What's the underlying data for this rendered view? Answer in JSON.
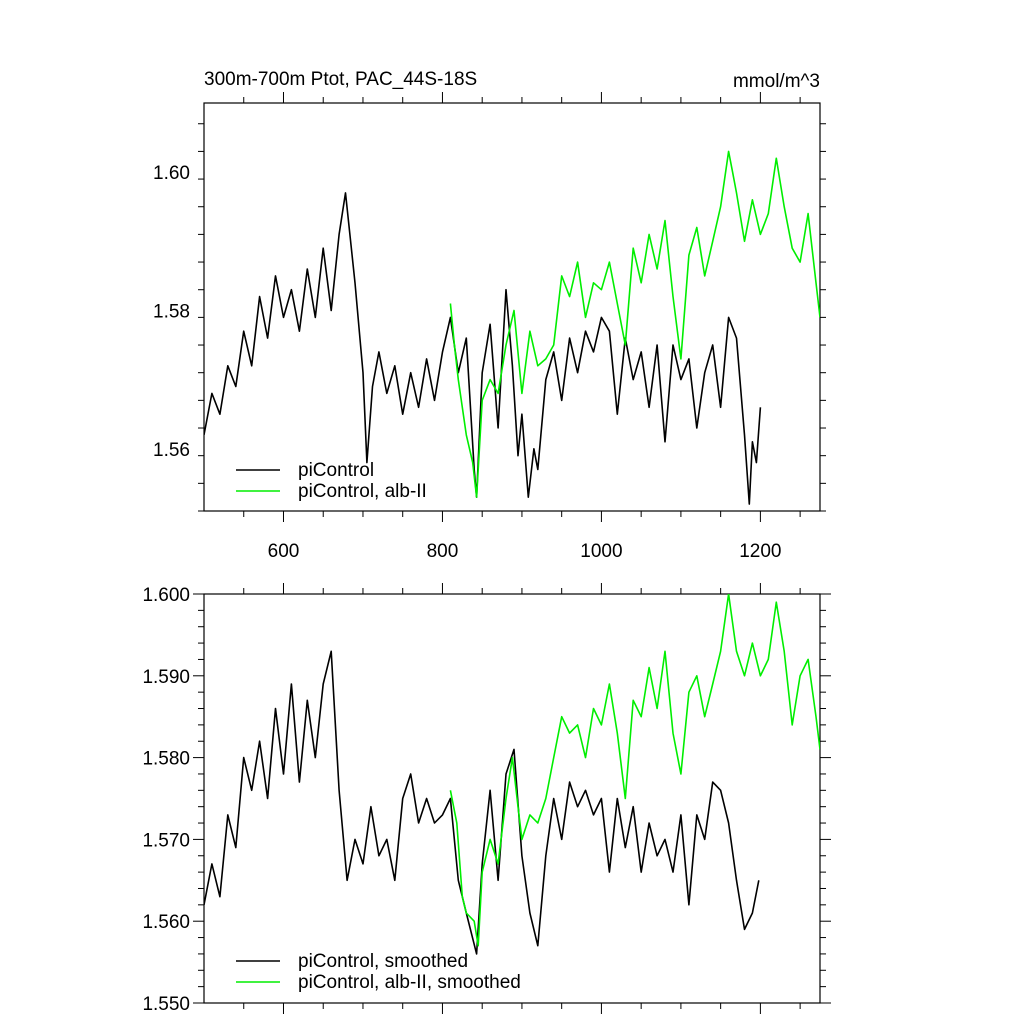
{
  "chart_data": [
    {
      "type": "line",
      "title": "300m-700m Ptot, PAC_44S-18S",
      "units": "mmol/m^3",
      "xlim": [
        500,
        1275
      ],
      "ylim": [
        1.551,
        1.61
      ],
      "x_ticks": [
        600,
        800,
        1000,
        1200
      ],
      "y_ticks": [
        "1.56",
        "1.58",
        "1.60"
      ],
      "y_tick_values": [
        1.56,
        1.58,
        1.6
      ],
      "grid": false,
      "legend_position": "bottom-left",
      "series": [
        {
          "name": "piControl",
          "color": "#000000",
          "x": [
            500,
            510,
            520,
            530,
            540,
            550,
            560,
            570,
            580,
            590,
            600,
            610,
            620,
            630,
            640,
            650,
            660,
            670,
            678,
            690,
            700,
            705,
            712,
            720,
            730,
            740,
            750,
            760,
            770,
            780,
            790,
            800,
            810,
            820,
            830,
            840,
            843,
            850,
            860,
            870,
            880,
            888,
            895,
            900,
            908,
            915,
            920,
            930,
            940,
            950,
            960,
            970,
            980,
            990,
            1000,
            1010,
            1020,
            1030,
            1040,
            1050,
            1060,
            1070,
            1080,
            1090,
            1100,
            1110,
            1120,
            1130,
            1140,
            1150,
            1160,
            1170,
            1180,
            1186,
            1190,
            1195,
            1200
          ],
          "values": [
            1.562,
            1.568,
            1.565,
            1.572,
            1.569,
            1.577,
            1.572,
            1.582,
            1.576,
            1.585,
            1.579,
            1.583,
            1.577,
            1.586,
            1.579,
            1.589,
            1.58,
            1.591,
            1.597,
            1.584,
            1.571,
            1.558,
            1.569,
            1.574,
            1.568,
            1.572,
            1.565,
            1.571,
            1.566,
            1.573,
            1.567,
            1.574,
            1.579,
            1.571,
            1.576,
            1.557,
            1.553,
            1.571,
            1.578,
            1.563,
            1.583,
            1.572,
            1.559,
            1.565,
            1.553,
            1.56,
            1.557,
            1.57,
            1.574,
            1.567,
            1.576,
            1.571,
            1.577,
            1.574,
            1.579,
            1.577,
            1.565,
            1.576,
            1.57,
            1.574,
            1.566,
            1.575,
            1.561,
            1.575,
            1.57,
            1.573,
            1.563,
            1.571,
            1.575,
            1.566,
            1.579,
            1.576,
            1.562,
            1.552,
            1.561,
            1.558,
            1.566
          ]
        },
        {
          "name": "piControl, alb-II",
          "color": "#00ee00",
          "x": [
            810,
            815,
            820,
            830,
            838,
            843,
            850,
            860,
            870,
            880,
            890,
            900,
            910,
            920,
            930,
            940,
            950,
            960,
            970,
            980,
            990,
            1000,
            1010,
            1020,
            1030,
            1040,
            1050,
            1060,
            1070,
            1080,
            1090,
            1100,
            1110,
            1120,
            1130,
            1140,
            1150,
            1160,
            1165,
            1170,
            1180,
            1190,
            1200,
            1210,
            1220,
            1230,
            1240,
            1250,
            1260,
            1270,
            1275
          ],
          "values": [
            1.581,
            1.575,
            1.57,
            1.562,
            1.558,
            1.553,
            1.567,
            1.57,
            1.568,
            1.575,
            1.58,
            1.568,
            1.577,
            1.572,
            1.573,
            1.575,
            1.585,
            1.582,
            1.587,
            1.579,
            1.584,
            1.583,
            1.587,
            1.581,
            1.575,
            1.589,
            1.584,
            1.591,
            1.586,
            1.593,
            1.582,
            1.573,
            1.588,
            1.592,
            1.585,
            1.59,
            1.595,
            1.603,
            1.6,
            1.597,
            1.59,
            1.596,
            1.591,
            1.594,
            1.602,
            1.595,
            1.589,
            1.587,
            1.594,
            1.584,
            1.579
          ]
        }
      ]
    },
    {
      "type": "line",
      "xlim": [
        500,
        1275
      ],
      "ylim": [
        1.55,
        1.6
      ],
      "y_ticks": [
        "1.550",
        "1.560",
        "1.570",
        "1.580",
        "1.590",
        "1.600"
      ],
      "y_tick_values": [
        1.55,
        1.56,
        1.57,
        1.58,
        1.59,
        1.6
      ],
      "grid": false,
      "legend_position": "bottom-left",
      "series": [
        {
          "name": "piControl, smoothed",
          "color": "#000000",
          "x": [
            500,
            510,
            520,
            530,
            540,
            550,
            560,
            570,
            580,
            590,
            600,
            610,
            620,
            630,
            640,
            650,
            660,
            670,
            680,
            690,
            700,
            710,
            720,
            730,
            740,
            750,
            760,
            770,
            780,
            790,
            800,
            810,
            820,
            830,
            843,
            850,
            860,
            870,
            880,
            890,
            900,
            910,
            920,
            930,
            940,
            950,
            960,
            970,
            980,
            990,
            1000,
            1010,
            1020,
            1030,
            1040,
            1050,
            1060,
            1070,
            1080,
            1090,
            1100,
            1110,
            1120,
            1130,
            1140,
            1150,
            1160,
            1170,
            1180,
            1190,
            1198
          ],
          "values": [
            1.562,
            1.567,
            1.563,
            1.573,
            1.569,
            1.58,
            1.576,
            1.582,
            1.575,
            1.586,
            1.578,
            1.589,
            1.577,
            1.587,
            1.58,
            1.589,
            1.593,
            1.576,
            1.565,
            1.57,
            1.567,
            1.574,
            1.568,
            1.57,
            1.565,
            1.575,
            1.578,
            1.572,
            1.575,
            1.572,
            1.573,
            1.575,
            1.565,
            1.561,
            1.556,
            1.567,
            1.576,
            1.565,
            1.578,
            1.581,
            1.568,
            1.561,
            1.557,
            1.568,
            1.575,
            1.57,
            1.577,
            1.574,
            1.576,
            1.573,
            1.575,
            1.566,
            1.575,
            1.569,
            1.574,
            1.566,
            1.572,
            1.568,
            1.57,
            1.566,
            1.573,
            1.562,
            1.573,
            1.57,
            1.577,
            1.576,
            1.572,
            1.565,
            1.559,
            1.561,
            1.565
          ]
        },
        {
          "name": "piControl, alb-II, smoothed",
          "color": "#00ee00",
          "x": [
            810,
            818,
            825,
            830,
            840,
            845,
            850,
            860,
            870,
            880,
            888,
            895,
            900,
            910,
            920,
            930,
            940,
            950,
            960,
            970,
            980,
            990,
            1000,
            1010,
            1020,
            1030,
            1040,
            1050,
            1060,
            1070,
            1080,
            1090,
            1100,
            1110,
            1120,
            1130,
            1140,
            1150,
            1160,
            1170,
            1180,
            1190,
            1200,
            1210,
            1220,
            1230,
            1240,
            1250,
            1260,
            1270,
            1275
          ],
          "values": [
            1.576,
            1.572,
            1.563,
            1.561,
            1.56,
            1.557,
            1.566,
            1.57,
            1.567,
            1.575,
            1.58,
            1.574,
            1.57,
            1.573,
            1.572,
            1.575,
            1.58,
            1.585,
            1.583,
            1.584,
            1.58,
            1.586,
            1.584,
            1.589,
            1.583,
            1.575,
            1.587,
            1.585,
            1.591,
            1.586,
            1.593,
            1.583,
            1.578,
            1.588,
            1.59,
            1.585,
            1.589,
            1.593,
            1.6,
            1.593,
            1.59,
            1.594,
            1.59,
            1.592,
            1.599,
            1.593,
            1.584,
            1.59,
            1.592,
            1.585,
            1.581
          ]
        }
      ]
    }
  ]
}
